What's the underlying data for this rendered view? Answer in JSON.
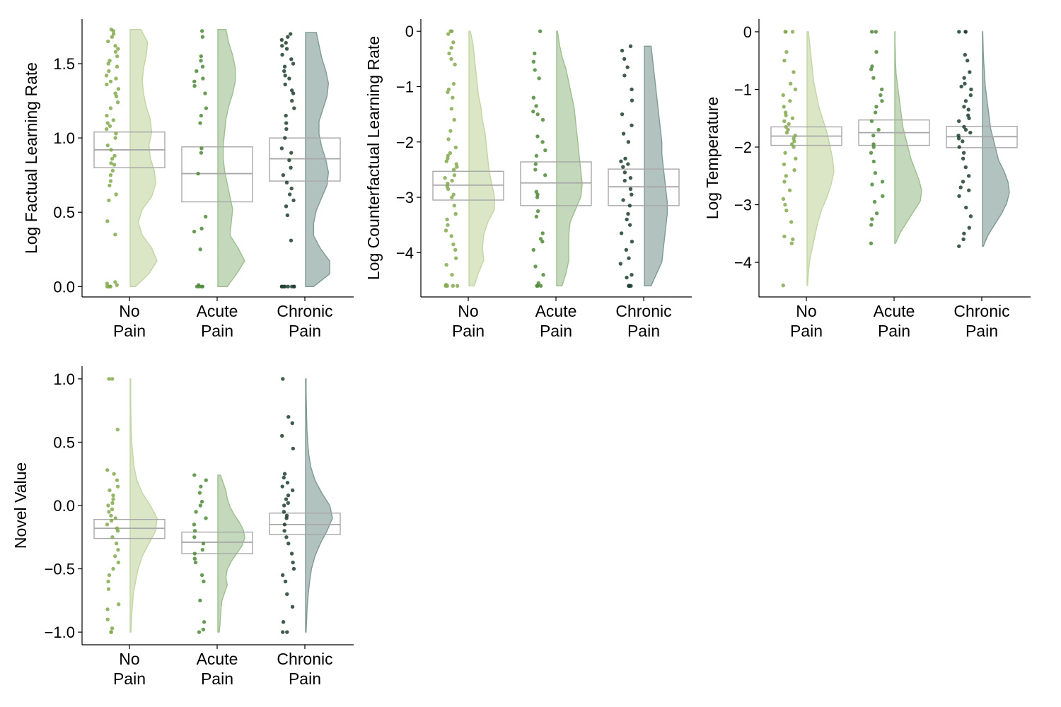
{
  "palette": {
    "groups": [
      "#84a94f",
      "#4f8a3a",
      "#1d3f2e"
    ],
    "violins": [
      "#c3d5a2",
      "#9dbf8e",
      "#7f9a92"
    ],
    "box_stroke": "#a8a8a8",
    "axis": "#000000"
  },
  "chart_data": [
    {
      "type": "raincloud",
      "xlabel": "",
      "ylabel": "Log Factual Learning Rate",
      "categories": [
        [
          "No",
          "Pain"
        ],
        [
          "Acute",
          "Pain"
        ],
        [
          "Chronic",
          "Pain"
        ]
      ],
      "ylim": [
        -0.07,
        1.8
      ],
      "yticks": [
        0.0,
        0.5,
        1.0,
        1.5
      ],
      "ytick_labels": [
        "0.0",
        "0.5",
        "1.0",
        "1.5"
      ],
      "box_stats": [
        {
          "q1": 0.8,
          "median": 0.92,
          "q3": 1.04
        },
        {
          "q1": 0.57,
          "median": 0.76,
          "q3": 0.94
        },
        {
          "q1": 0.71,
          "median": 0.86,
          "q3": 1.0
        }
      ],
      "violin_range": [
        [
          0.0,
          1.73
        ],
        [
          0.0,
          1.73
        ],
        [
          0.0,
          1.71
        ]
      ],
      "violin_density": [
        [
          0.2,
          0.7,
          1.0,
          0.8,
          0.45,
          0.3,
          0.45,
          0.8,
          0.95,
          0.9,
          0.75,
          0.7,
          0.8,
          0.75,
          0.6,
          0.5,
          0.45,
          0.5,
          0.6,
          0.65,
          0.4
        ],
        [
          0.35,
          0.7,
          1.0,
          0.75,
          0.45,
          0.5,
          0.55,
          0.45,
          0.35,
          0.25,
          0.2,
          0.2,
          0.25,
          0.3,
          0.4,
          0.55,
          0.65,
          0.65,
          0.55,
          0.4,
          0.3
        ],
        [
          0.3,
          0.9,
          0.9,
          0.55,
          0.3,
          0.3,
          0.4,
          0.6,
          0.8,
          0.85,
          0.75,
          0.6,
          0.5,
          0.5,
          0.65,
          0.8,
          0.85,
          0.75,
          0.6,
          0.5,
          0.4
        ]
      ],
      "points": [
        [
          0.0,
          0.0,
          0.0,
          0.02,
          0.03,
          0.01,
          0.0,
          0.35,
          0.44,
          0.58,
          0.62,
          0.68,
          0.71,
          0.75,
          0.78,
          0.82,
          0.83,
          0.86,
          0.88,
          0.92,
          0.95,
          1.0,
          1.03,
          1.06,
          1.08,
          1.1,
          1.12,
          1.15,
          1.2,
          1.24,
          1.28,
          1.3,
          1.33,
          1.36,
          1.38,
          1.4,
          1.42,
          1.45,
          1.48,
          1.5,
          1.52,
          1.55,
          1.58,
          1.6,
          1.62,
          1.65,
          1.68,
          1.7,
          1.72,
          1.73
        ],
        [
          0.0,
          0.0,
          0.0,
          0.0,
          0.01,
          0.25,
          0.37,
          0.39,
          0.47,
          0.76,
          0.9,
          0.93,
          1.1,
          1.15,
          1.2,
          1.3,
          1.35,
          1.38,
          1.4,
          1.45,
          1.48,
          1.52,
          1.55,
          1.68,
          1.72
        ],
        [
          0.0,
          0.0,
          0.0,
          0.0,
          0.0,
          0.0,
          0.0,
          0.0,
          0.31,
          0.48,
          0.54,
          0.58,
          0.62,
          0.66,
          0.7,
          0.75,
          0.8,
          0.85,
          0.9,
          0.93,
          1.0,
          1.06,
          1.1,
          1.15,
          1.2,
          1.25,
          1.3,
          1.32,
          1.36,
          1.4,
          1.42,
          1.45,
          1.48,
          1.5,
          1.53,
          1.56,
          1.6,
          1.62,
          1.64,
          1.66,
          1.68,
          1.7
        ]
      ]
    },
    {
      "type": "raincloud",
      "xlabel": "",
      "ylabel": "Log Counterfactual Learning Rate",
      "categories": [
        [
          "No",
          "Pain"
        ],
        [
          "Acute",
          "Pain"
        ],
        [
          "Chronic",
          "Pain"
        ]
      ],
      "ylim": [
        -4.8,
        0.22
      ],
      "yticks": [
        0,
        -1,
        -2,
        -3,
        -4
      ],
      "ytick_labels": [
        "0",
        "−1",
        "−2",
        "−3",
        "−4"
      ],
      "box_stats": [
        {
          "q1": -3.05,
          "median": -2.78,
          "q3": -2.53
        },
        {
          "q1": -3.15,
          "median": -2.74,
          "q3": -2.36
        },
        {
          "q1": -3.15,
          "median": -2.81,
          "q3": -2.49
        }
      ],
      "violin_range": [
        [
          -4.6,
          0.0
        ],
        [
          -4.6,
          0.0
        ],
        [
          -4.6,
          -0.27
        ]
      ],
      "violin_density": [
        [
          0.2,
          0.35,
          0.55,
          0.5,
          0.55,
          0.7,
          0.95,
          0.95,
          0.85,
          0.75,
          0.7,
          0.65,
          0.6,
          0.5,
          0.45,
          0.35,
          0.3,
          0.25,
          0.2,
          0.15,
          0.05
        ],
        [
          0.2,
          0.35,
          0.45,
          0.45,
          0.45,
          0.5,
          0.7,
          0.9,
          0.95,
          0.9,
          0.85,
          0.8,
          0.75,
          0.7,
          0.65,
          0.55,
          0.45,
          0.35,
          0.2,
          0.1,
          0.03
        ],
        [
          0.25,
          0.45,
          0.65,
          0.7,
          0.75,
          0.8,
          0.85,
          0.85,
          0.8,
          0.75,
          0.7,
          0.65,
          0.65,
          0.6,
          0.55,
          0.5,
          0.45,
          0.4,
          0.35,
          0.3,
          0.25
        ]
      ],
      "points": [
        [
          -4.6,
          -4.6,
          -4.6,
          -4.58,
          -4.6,
          -4.4,
          -4.22,
          -4.1,
          -3.95,
          -3.85,
          -3.7,
          -3.6,
          -3.5,
          -3.4,
          -3.3,
          -3.15,
          -3.0,
          -2.95,
          -2.85,
          -2.8,
          -2.75,
          -2.7,
          -2.65,
          -2.6,
          -2.5,
          -2.45,
          -2.4,
          -2.35,
          -2.3,
          -2.25,
          -2.2,
          -2.1,
          -1.95,
          -1.8,
          -1.6,
          -1.4,
          -1.2,
          -1.1,
          -1.05,
          -0.95,
          -0.6,
          -0.5,
          -0.4,
          -0.3,
          -0.2,
          -0.05,
          0.0,
          0.0
        ],
        [
          -4.6,
          -4.6,
          -4.6,
          -4.55,
          -4.4,
          -4.25,
          -3.95,
          -3.8,
          -3.75,
          -3.65,
          -3.35,
          -3.25,
          -3.0,
          -2.95,
          -2.9,
          -2.6,
          -2.5,
          -2.4,
          -2.25,
          -2.15,
          -2.0,
          -1.9,
          -1.6,
          -1.5,
          -1.45,
          -1.35,
          -1.2,
          -0.85,
          -0.7,
          -0.55,
          -0.4,
          0.0
        ],
        [
          -4.6,
          -4.6,
          -4.6,
          -4.6,
          -4.45,
          -4.4,
          -4.2,
          -4.1,
          -3.95,
          -3.8,
          -3.65,
          -3.5,
          -3.4,
          -3.3,
          -3.15,
          -3.05,
          -2.95,
          -2.85,
          -2.7,
          -2.65,
          -2.55,
          -2.45,
          -2.4,
          -2.35,
          -2.3,
          -2.0,
          -1.85,
          -1.7,
          -1.5,
          -1.25,
          -1.05,
          -0.8,
          -0.65,
          -0.5,
          -0.35,
          -0.27
        ]
      ]
    },
    {
      "type": "raincloud",
      "xlabel": "",
      "ylabel": "Log Temperature",
      "categories": [
        [
          "No",
          "Pain"
        ],
        [
          "Acute",
          "Pain"
        ],
        [
          "Chronic",
          "Pain"
        ]
      ],
      "ylim": [
        -4.6,
        0.22
      ],
      "yticks": [
        0,
        -1,
        -2,
        -3,
        -4
      ],
      "ytick_labels": [
        "0",
        "−1",
        "−2",
        "−3",
        "−4"
      ],
      "box_stats": [
        {
          "q1": -1.97,
          "median": -1.81,
          "q3": -1.65
        },
        {
          "q1": -1.97,
          "median": -1.75,
          "q3": -1.53
        },
        {
          "q1": -2.01,
          "median": -1.82,
          "q3": -1.64
        }
      ],
      "violin_range": [
        [
          -4.4,
          0.0
        ],
        [
          -3.67,
          0.0
        ],
        [
          -3.72,
          0.0
        ]
      ],
      "violin_density": [
        [
          0.02,
          0.05,
          0.1,
          0.2,
          0.3,
          0.4,
          0.55,
          0.75,
          0.9,
          1.0,
          0.95,
          0.85,
          0.75,
          0.6,
          0.45,
          0.35,
          0.25,
          0.2,
          0.15,
          0.1,
          0.05
        ],
        [
          0.03,
          0.2,
          0.45,
          0.7,
          0.95,
          1.0,
          0.9,
          0.75,
          0.6,
          0.5,
          0.4,
          0.3,
          0.25,
          0.2,
          0.15,
          0.1,
          0.05,
          0.03,
          0.02,
          0.01,
          0.01
        ],
        [
          0.03,
          0.2,
          0.45,
          0.7,
          0.9,
          1.0,
          0.95,
          0.8,
          0.6,
          0.5,
          0.4,
          0.3,
          0.25,
          0.2,
          0.15,
          0.1,
          0.08,
          0.05,
          0.03,
          0.02,
          0.01
        ]
      ],
      "points": [
        [
          -4.4,
          -3.67,
          -3.6,
          -3.55,
          -3.3,
          -3.1,
          -3.0,
          -2.9,
          -2.75,
          -2.6,
          -2.5,
          -2.4,
          -2.3,
          -2.2,
          -2.1,
          -2.0,
          -1.95,
          -1.9,
          -1.85,
          -1.8,
          -1.75,
          -1.7,
          -1.65,
          -1.6,
          -1.55,
          -1.5,
          -1.45,
          -1.4,
          -1.3,
          -1.2,
          -1.1,
          -1.0,
          -0.9,
          -0.7,
          -0.5,
          -0.35,
          0.0,
          0.0,
          0.0
        ],
        [
          -3.67,
          -3.35,
          -3.25,
          -3.15,
          -2.95,
          -2.85,
          -2.65,
          -2.6,
          -2.45,
          -2.25,
          -2.1,
          -2.0,
          -1.95,
          -1.8,
          -1.7,
          -1.55,
          -1.4,
          -1.3,
          -1.2,
          -1.1,
          -1.0,
          -0.8,
          -0.65,
          -0.6,
          -0.35,
          0.0,
          0.0
        ],
        [
          -3.72,
          -3.6,
          -3.5,
          -3.4,
          -3.2,
          -3.05,
          -2.85,
          -2.75,
          -2.7,
          -2.6,
          -2.5,
          -2.35,
          -2.2,
          -2.1,
          -2.0,
          -1.9,
          -1.85,
          -1.8,
          -1.75,
          -1.7,
          -1.65,
          -1.55,
          -1.5,
          -1.45,
          -1.35,
          -1.3,
          -1.2,
          -1.1,
          -1.0,
          -0.95,
          -0.9,
          -0.8,
          -0.7,
          -0.5,
          -0.4,
          0.0,
          0.0,
          0.0
        ]
      ]
    },
    {
      "type": "raincloud",
      "xlabel": "",
      "ylabel": "Novel Value",
      "categories": [
        [
          "No",
          "Pain"
        ],
        [
          "Acute",
          "Pain"
        ],
        [
          "Chronic",
          "Pain"
        ]
      ],
      "ylim": [
        -1.1,
        1.1
      ],
      "yticks": [
        1.0,
        0.5,
        0.0,
        -0.5,
        -1.0
      ],
      "ytick_labels": [
        "1.0",
        "0.5",
        "0.0",
        "−0.5",
        "−1.0"
      ],
      "box_stats": [
        {
          "q1": -0.26,
          "median": -0.18,
          "q3": -0.11
        },
        {
          "q1": -0.38,
          "median": -0.29,
          "q3": -0.21
        },
        {
          "q1": -0.23,
          "median": -0.15,
          "q3": -0.06
        }
      ],
      "violin_range": [
        [
          -1.0,
          1.0
        ],
        [
          -1.0,
          0.24
        ],
        [
          -1.0,
          1.0
        ]
      ],
      "violin_density": [
        [
          0.03,
          0.05,
          0.08,
          0.12,
          0.2,
          0.3,
          0.45,
          0.7,
          0.95,
          1.0,
          0.75,
          0.45,
          0.25,
          0.15,
          0.1,
          0.06,
          0.04,
          0.03,
          0.02,
          0.02,
          0.02
        ],
        [
          0.05,
          0.08,
          0.1,
          0.12,
          0.15,
          0.25,
          0.35,
          0.3,
          0.35,
          0.5,
          0.7,
          0.9,
          1.0,
          0.95,
          0.8,
          0.6,
          0.45,
          0.35,
          0.3,
          0.2,
          0.1
        ],
        [
          0.02,
          0.04,
          0.06,
          0.1,
          0.15,
          0.22,
          0.35,
          0.55,
          0.8,
          1.0,
          0.9,
          0.6,
          0.35,
          0.2,
          0.12,
          0.08,
          0.05,
          0.04,
          0.03,
          0.02,
          0.02
        ]
      ],
      "points": [
        [
          -1.0,
          -1.0,
          -0.97,
          -0.9,
          -0.82,
          -0.78,
          -0.66,
          -0.6,
          -0.55,
          -0.5,
          -0.45,
          -0.4,
          -0.35,
          -0.3,
          -0.25,
          -0.2,
          -0.18,
          -0.15,
          -0.12,
          -0.1,
          -0.08,
          -0.05,
          -0.03,
          0.0,
          0.02,
          0.05,
          0.08,
          0.12,
          0.15,
          0.2,
          0.25,
          0.28,
          0.6,
          1.0,
          1.0
        ],
        [
          -1.0,
          -0.98,
          -0.92,
          -0.75,
          -0.6,
          -0.55,
          -0.45,
          -0.42,
          -0.38,
          -0.35,
          -0.3,
          -0.25,
          -0.2,
          -0.15,
          -0.1,
          -0.05,
          0.0,
          0.03,
          0.1,
          0.15,
          0.2,
          0.24
        ],
        [
          -1.0,
          -1.0,
          -0.92,
          -0.8,
          -0.7,
          -0.6,
          -0.55,
          -0.5,
          -0.45,
          -0.38,
          -0.3,
          -0.25,
          -0.2,
          -0.15,
          -0.1,
          -0.08,
          -0.05,
          0.0,
          0.02,
          0.05,
          0.08,
          0.12,
          0.15,
          0.18,
          0.22,
          0.25,
          0.45,
          0.55,
          0.65,
          0.7,
          1.0
        ]
      ]
    }
  ]
}
